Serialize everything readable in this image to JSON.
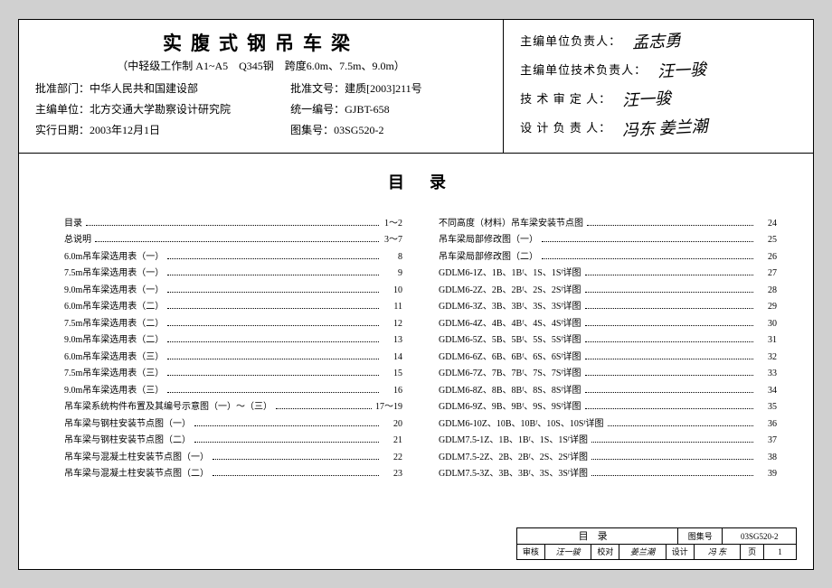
{
  "header": {
    "title": "实腹式钢吊车梁",
    "subtitle": "（中轻级工作制 A1~A5　Q345钢　跨度6.0m、7.5m、9.0m）",
    "approve_dept_label": "批准部门：",
    "approve_dept": "中华人民共和国建设部",
    "approve_doc_label": "批准文号：",
    "approve_doc": "建质[2003]211号",
    "editor_label": "主编单位：",
    "editor": "北方交通大学勘察设计研究院",
    "unified_code_label": "统一编号：",
    "unified_code": "GJBT-658",
    "effect_date_label": "实行日期：",
    "effect_date": "2003年12月1日",
    "atlas_code_label": "图集号：",
    "atlas_code": "03SG520-2"
  },
  "signatures": {
    "s1_label": "主编单位负责人：",
    "s1_val": "孟志勇",
    "s2_label": "主编单位技术负责人：",
    "s2_val": "汪一骏",
    "s3_label": "技 术 审 定 人：",
    "s3_val": "汪一骏",
    "s4_label": "设 计 负 责 人：",
    "s4_val": "冯东 姜兰潮"
  },
  "toc": {
    "title": "目录",
    "left": [
      {
        "label": "目录",
        "page": "1～2"
      },
      {
        "label": "总说明",
        "page": "3～7"
      },
      {
        "label": "6.0m吊车梁选用表（一）",
        "page": "8"
      },
      {
        "label": "7.5m吊车梁选用表（一）",
        "page": "9"
      },
      {
        "label": "9.0m吊车梁选用表（一）",
        "page": "10"
      },
      {
        "label": "6.0m吊车梁选用表（二）",
        "page": "11"
      },
      {
        "label": "7.5m吊车梁选用表（二）",
        "page": "12"
      },
      {
        "label": "9.0m吊车梁选用表（二）",
        "page": "13"
      },
      {
        "label": "6.0m吊车梁选用表（三）",
        "page": "14"
      },
      {
        "label": "7.5m吊车梁选用表（三）",
        "page": "15"
      },
      {
        "label": "9.0m吊车梁选用表（三）",
        "page": "16"
      },
      {
        "label": "吊车梁系统构件布置及其编号示意图（一）～（三）",
        "page": "17～19"
      },
      {
        "label": "吊车梁与钢柱安装节点图（一）",
        "page": "20"
      },
      {
        "label": "吊车梁与钢柱安装节点图（二）",
        "page": "21"
      },
      {
        "label": "吊车梁与混凝土柱安装节点图（一）",
        "page": "22"
      },
      {
        "label": "吊车梁与混凝土柱安装节点图（二）",
        "page": "23"
      }
    ],
    "right": [
      {
        "label": "不同高度（材料）吊车梁安装节点图",
        "page": "24"
      },
      {
        "label": "吊车梁局部修改图（一）",
        "page": "25"
      },
      {
        "label": "吊车梁局部修改图（二）",
        "page": "26"
      },
      {
        "label": "GDLM6-1Z、1B、1Bᶠ、1S、1Sᶠ详图",
        "page": "27"
      },
      {
        "label": "GDLM6-2Z、2B、2Bᶠ、2S、2Sᶠ详图",
        "page": "28"
      },
      {
        "label": "GDLM6-3Z、3B、3Bᶠ、3S、3Sᶠ详图",
        "page": "29"
      },
      {
        "label": "GDLM6-4Z、4B、4Bᶠ、4S、4Sᶠ详图",
        "page": "30"
      },
      {
        "label": "GDLM6-5Z、5B、5Bᶠ、5S、5Sᶠ详图",
        "page": "31"
      },
      {
        "label": "GDLM6-6Z、6B、6Bᶠ、6S、6Sᶠ详图",
        "page": "32"
      },
      {
        "label": "GDLM6-7Z、7B、7Bᶠ、7S、7Sᶠ详图",
        "page": "33"
      },
      {
        "label": "GDLM6-8Z、8B、8Bᶠ、8S、8Sᶠ详图",
        "page": "34"
      },
      {
        "label": "GDLM6-9Z、9B、9Bᶠ、9S、9Sᶠ详图",
        "page": "35"
      },
      {
        "label": "GDLM6-10Z、10B、10Bᶠ、10S、10Sᶠ详图",
        "page": "36"
      },
      {
        "label": "GDLM7.5-1Z、1B、1Bᶠ、1S、1Sᶠ详图",
        "page": "37"
      },
      {
        "label": "GDLM7.5-2Z、2B、2Bᶠ、2S、2Sᶠ详图",
        "page": "38"
      },
      {
        "label": "GDLM7.5-3Z、3B、3Bᶠ、3S、3Sᶠ详图",
        "page": "39"
      }
    ]
  },
  "footer": {
    "title": "目录",
    "code_label": "图集号",
    "code": "03SG520-2",
    "check_label": "审核",
    "check_val": "汪一骏",
    "proof_label": "校对",
    "proof_val": "姜兰潮",
    "design_label": "设计",
    "design_val": "冯 东",
    "page_label": "页",
    "page": "1"
  }
}
